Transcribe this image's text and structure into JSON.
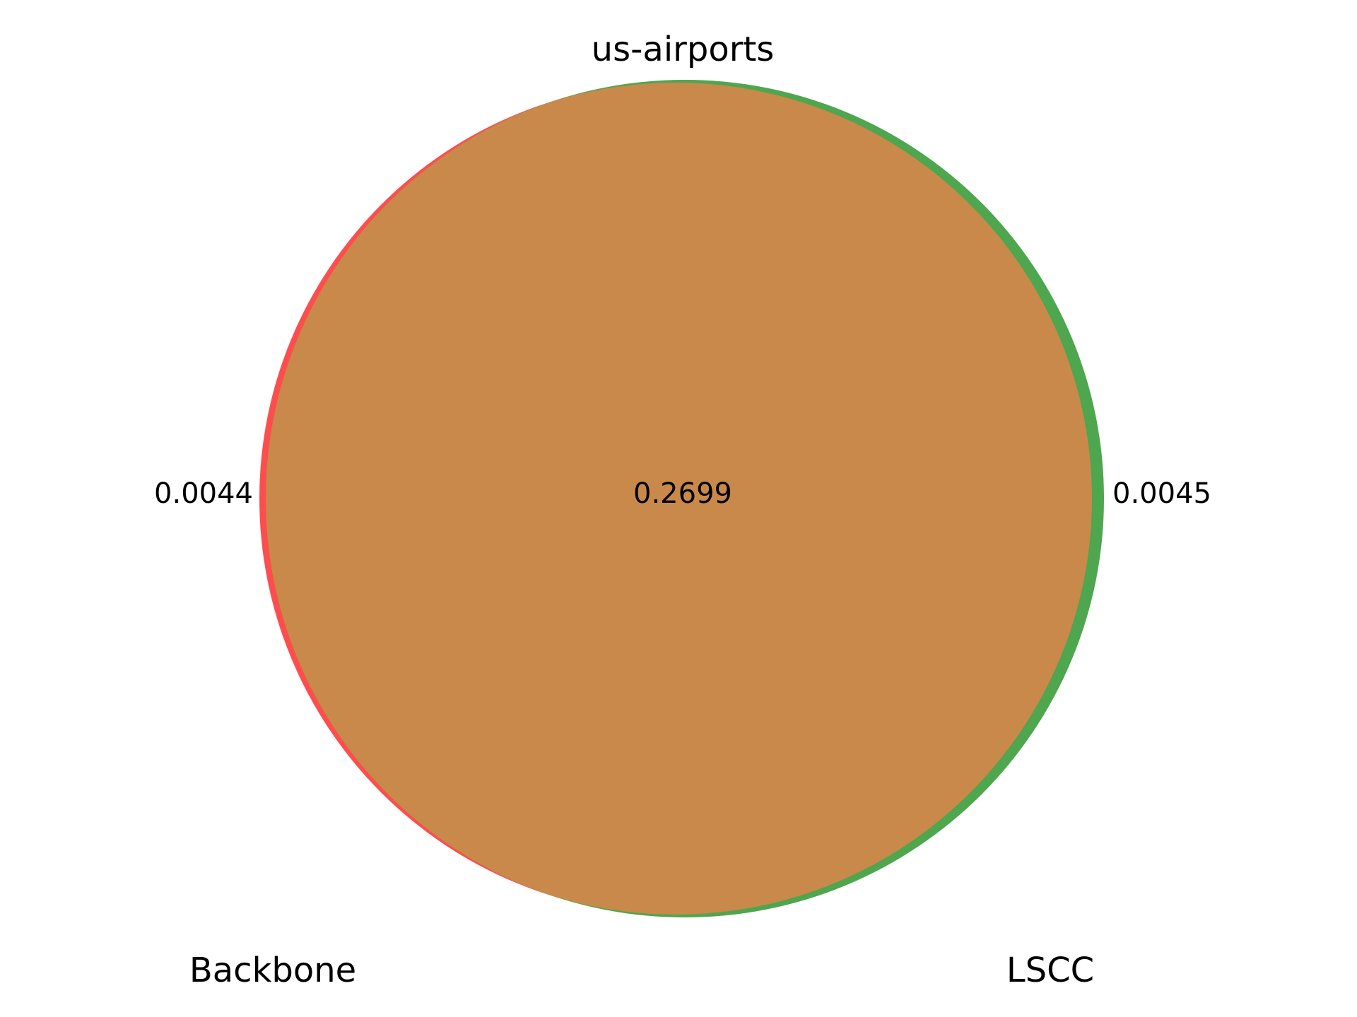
{
  "title": "us-airports",
  "sets": [
    {
      "name": "Backbone",
      "color": "#ff4d4d"
    },
    {
      "name": "LSCC",
      "color": "#4ea64e"
    }
  ],
  "regions": {
    "backbone_only": "0.0044",
    "intersection": "0.2699",
    "lscc_only": "0.0045"
  },
  "colors": {
    "overlap": "#c8894b"
  }
}
